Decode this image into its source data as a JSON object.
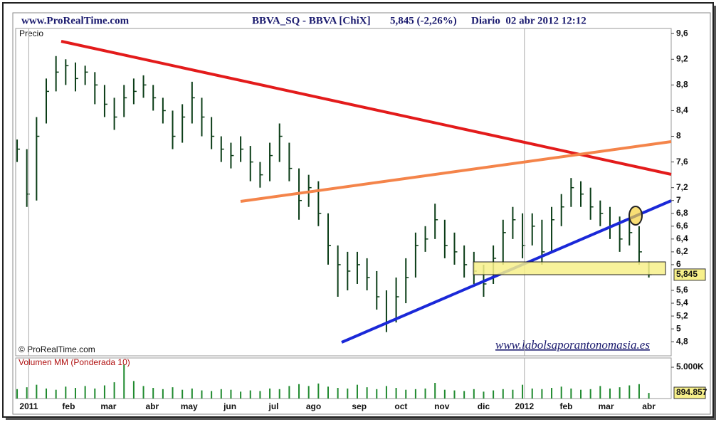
{
  "header": {
    "site": "www.ProRealTime.com",
    "symbol": "BBVA_SQ - BBVA [ChiX]",
    "quote": "5,845 (-2,26%)",
    "period": "Diario  02 abr 2012 12:12"
  },
  "copyright": "© ProRealTime.com",
  "watermark": "www.labolsaporantonomasia.es",
  "chart_data": [
    {
      "type": "ohlc",
      "title": "Precio",
      "color": "#0b3d17",
      "xlim": [
        -0.15,
        67.3
      ],
      "ylim": [
        4.58,
        9.68
      ],
      "yticks": [
        {
          "value": 9.6,
          "label": "9,6"
        },
        {
          "value": 9.2,
          "label": "9,2"
        },
        {
          "value": 8.8,
          "label": "8,8"
        },
        {
          "value": 8.4,
          "label": "8,4"
        },
        8,
        {
          "value": 7.6,
          "label": "7,6"
        },
        {
          "value": 7.2,
          "label": "7,2"
        },
        7,
        {
          "value": 6.8,
          "label": "6,8"
        },
        {
          "value": 6.6,
          "label": "6,6"
        },
        {
          "value": 6.4,
          "label": "6,4"
        },
        {
          "value": 6.2,
          "label": "6,2"
        },
        6,
        {
          "value": 5.6,
          "label": "5,6"
        },
        {
          "value": 5.4,
          "label": "5,4"
        },
        {
          "value": 5.2,
          "label": "5,2"
        },
        5,
        {
          "value": 4.8,
          "label": "4,8"
        }
      ],
      "high": [
        7.95,
        7.8,
        8.3,
        8.9,
        9.25,
        9.2,
        9.15,
        9.1,
        9.0,
        8.8,
        8.6,
        8.8,
        8.9,
        8.95,
        8.8,
        8.6,
        8.4,
        8.5,
        8.85,
        8.6,
        8.3,
        8.0,
        7.9,
        8.0,
        7.85,
        7.6,
        7.9,
        8.2,
        7.9,
        7.5,
        7.4,
        7.3,
        6.8,
        6.3,
        6.2,
        6.2,
        6.1,
        5.9,
        5.6,
        5.8,
        6.1,
        6.5,
        6.6,
        6.95,
        6.7,
        6.5,
        6.3,
        6.2,
        6.0,
        6.3,
        6.7,
        6.9,
        6.8,
        6.8,
        6.7,
        6.9,
        7.1,
        7.35,
        7.3,
        7.2,
        7.0,
        6.9,
        6.75,
        6.7,
        6.6,
        6.05
      ],
      "low": [
        7.6,
        6.9,
        7.0,
        8.2,
        8.7,
        8.8,
        8.7,
        8.8,
        8.5,
        8.3,
        8.1,
        8.3,
        8.5,
        8.6,
        8.4,
        8.2,
        7.8,
        7.9,
        8.2,
        8.0,
        7.8,
        7.6,
        7.5,
        7.6,
        7.3,
        7.2,
        7.3,
        7.6,
        7.3,
        6.7,
        6.9,
        6.6,
        6.0,
        5.5,
        5.6,
        5.7,
        5.6,
        5.3,
        4.95,
        5.1,
        5.4,
        5.8,
        6.2,
        6.4,
        6.1,
        6.0,
        5.8,
        5.7,
        5.5,
        5.7,
        6.0,
        6.4,
        6.1,
        6.3,
        6.0,
        6.2,
        6.6,
        6.9,
        6.9,
        6.7,
        6.6,
        6.4,
        6.2,
        6.3,
        6.0,
        5.8
      ],
      "close": [
        7.8,
        7.1,
        8.0,
        8.7,
        9.0,
        9.1,
        8.9,
        9.0,
        8.8,
        8.5,
        8.3,
        8.6,
        8.7,
        8.8,
        8.6,
        8.4,
        8.0,
        8.3,
        8.6,
        8.3,
        8.0,
        7.8,
        7.7,
        7.8,
        7.6,
        7.4,
        7.7,
        8.0,
        7.5,
        7.0,
        7.2,
        6.8,
        6.3,
        6.0,
        5.9,
        6.0,
        5.8,
        5.5,
        5.1,
        5.5,
        5.8,
        6.3,
        6.4,
        6.7,
        6.3,
        6.2,
        6.0,
        5.9,
        5.7,
        6.1,
        6.5,
        6.7,
        6.3,
        6.6,
        6.2,
        6.7,
        6.9,
        7.2,
        7.1,
        6.9,
        6.8,
        6.6,
        6.4,
        6.5,
        6.2,
        5.845
      ],
      "last_value_label": "5,845"
    },
    {
      "type": "bar",
      "title": "Volumen MM (Ponderada 10)",
      "color": "#1f8a2e",
      "xlim": [
        -0.15,
        67.3
      ],
      "ylim": [
        0,
        6480000
      ],
      "yticks": [
        {
          "value": 5000000,
          "label": "5.000K"
        }
      ],
      "xticks": [
        {
          "value": 1.2,
          "label": "2011"
        },
        {
          "value": 5.3,
          "label": "feb"
        },
        {
          "value": 9.4,
          "label": "mar"
        },
        {
          "value": 13.9,
          "label": "abr"
        },
        {
          "value": 17.7,
          "label": "may"
        },
        {
          "value": 21.9,
          "label": "jun"
        },
        {
          "value": 26.4,
          "label": "jul"
        },
        {
          "value": 30.5,
          "label": "ago"
        },
        {
          "value": 35.2,
          "label": "sep"
        },
        {
          "value": 39.5,
          "label": "oct"
        },
        {
          "value": 43.7,
          "label": "nov"
        },
        {
          "value": 48,
          "label": "dic"
        },
        {
          "value": 52.2,
          "label": "2012"
        },
        {
          "value": 56.5,
          "label": "feb"
        },
        {
          "value": 60.6,
          "label": "mar"
        },
        {
          "value": 65,
          "label": "abr"
        }
      ],
      "values": [
        1500000,
        1800000,
        2200000,
        1600000,
        1400000,
        1900000,
        1700000,
        2000000,
        1600000,
        2100000,
        2600000,
        5400000,
        2800000,
        2000000,
        1700000,
        1500000,
        1800000,
        1400000,
        1600000,
        1300000,
        1200000,
        1500000,
        1400000,
        1100000,
        1300000,
        1200000,
        1600000,
        1500000,
        2000000,
        2300000,
        2000000,
        2400000,
        1900000,
        1700000,
        1600000,
        2200000,
        1800000,
        1500000,
        2000000,
        1700000,
        1400000,
        1500000,
        1600000,
        2500000,
        1400000,
        1300000,
        1200000,
        1500000,
        1100000,
        1300000,
        1500000,
        1400000,
        2200000,
        1600000,
        1500000,
        1700000,
        1900000,
        1600000,
        1400000,
        1500000,
        2000000,
        1600000,
        1800000,
        2100000,
        2300000,
        894857
      ],
      "last_value_label": "894.857"
    }
  ]
}
